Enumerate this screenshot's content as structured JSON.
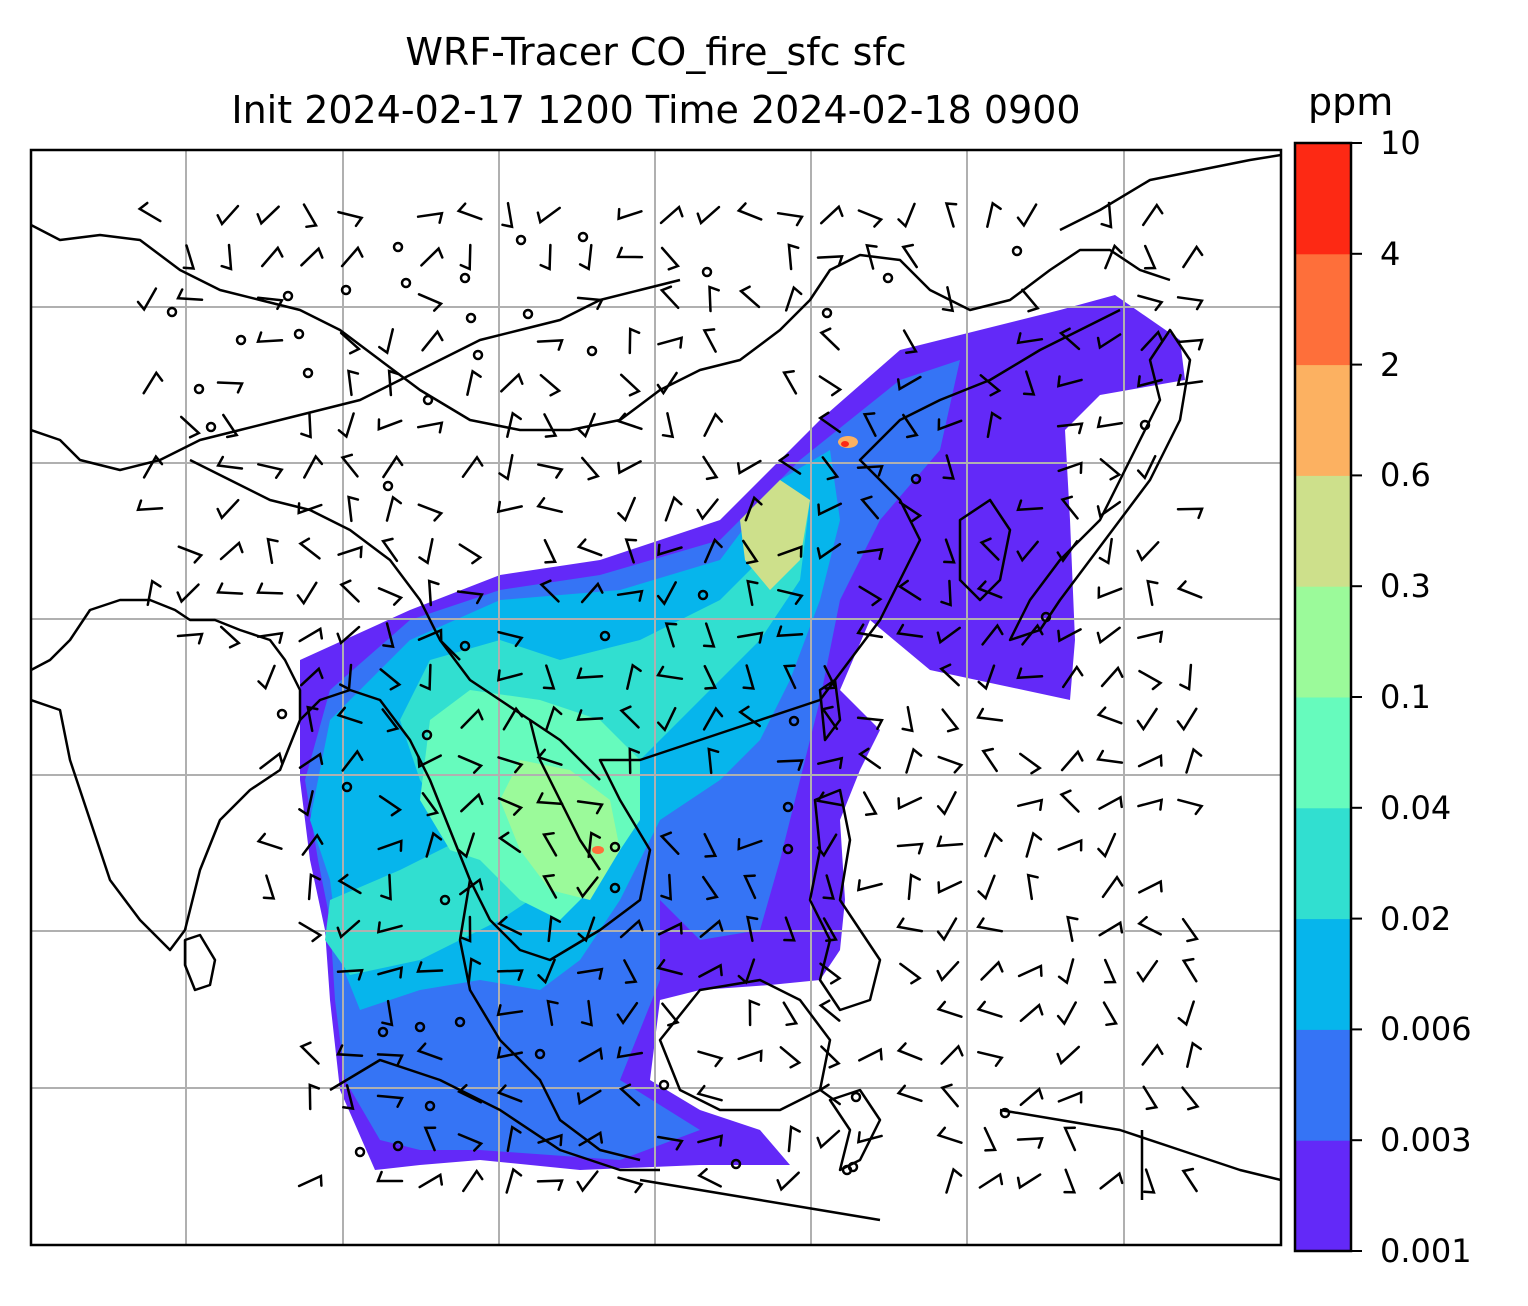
{
  "title": {
    "line1": "WRF-Tracer CO_fire_sfc sfc",
    "line2": "Init 2024-02-17 1200 Time 2024-02-18 0900"
  },
  "colorbar": {
    "unit": "ppm",
    "levels": [
      "0.001",
      "0.003",
      "0.006",
      "0.02",
      "0.04",
      "0.1",
      "0.3",
      "0.6",
      "2",
      "4",
      "10"
    ],
    "colors": [
      "#6329f8",
      "#3574f5",
      "#06b5ec",
      "#31dfd0",
      "#66fbbd",
      "#9bfa9a",
      "#cde08b",
      "#fcb161",
      "#fe6f3a",
      "#fd2914"
    ]
  },
  "map": {
    "gridlines": true,
    "barb_color": "#000000",
    "coastline_color": "#000000",
    "grid_color": "#b0b0b0"
  }
}
